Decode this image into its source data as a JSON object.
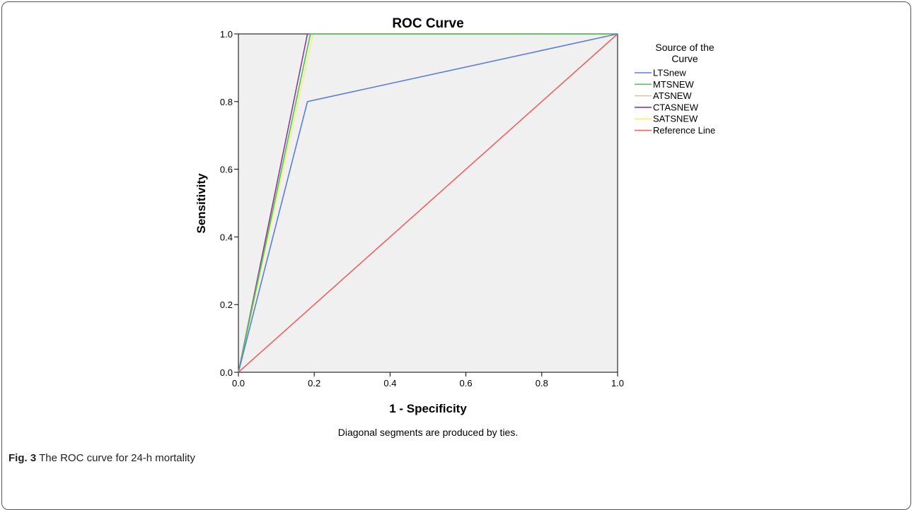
{
  "caption": {
    "label": "Fig. 3",
    "text": "The ROC curve for 24-h mortality"
  },
  "footnote": "Diagonal segments are produced by ties.",
  "chart_data": {
    "type": "line",
    "title": "ROC Curve",
    "xlabel": "1 - Specificity",
    "ylabel": "Sensitivity",
    "xlim": [
      0.0,
      1.0
    ],
    "ylim": [
      0.0,
      1.0
    ],
    "xticks": [
      "0.0",
      "0.2",
      "0.4",
      "0.6",
      "0.8",
      "1.0"
    ],
    "yticks": [
      "0.0",
      "0.2",
      "0.4",
      "0.6",
      "0.8",
      "1.0"
    ],
    "plot_background": "#f0f0f0",
    "grid": false,
    "legend": {
      "title_lines": [
        "Source of the",
        "Curve"
      ],
      "placement": "right"
    },
    "series": [
      {
        "name": "LTSnew",
        "color": "#5b7fd6",
        "x": [
          0.0,
          0.182,
          1.0
        ],
        "y": [
          0.0,
          0.8,
          1.0
        ]
      },
      {
        "name": "MTSNEW",
        "color": "#4cc45a",
        "x": [
          0.0,
          0.19,
          1.0
        ],
        "y": [
          0.0,
          1.0,
          1.0
        ]
      },
      {
        "name": "ATSNEW",
        "color": "#d8c9a0",
        "x": [
          0.0,
          0.19,
          1.0
        ],
        "y": [
          0.0,
          1.0,
          1.0
        ]
      },
      {
        "name": "CTASNEW",
        "color": "#8b3a9a",
        "x": [
          0.0,
          0.182,
          1.0
        ],
        "y": [
          0.0,
          1.0,
          1.0
        ]
      },
      {
        "name": "SATSNEW",
        "color": "#f2f27a",
        "x": [
          0.0,
          0.197,
          1.0
        ],
        "y": [
          0.0,
          1.0,
          1.0
        ]
      },
      {
        "name": "Reference Line",
        "color": "#f06060",
        "x": [
          0.0,
          1.0
        ],
        "y": [
          0.0,
          1.0
        ]
      }
    ]
  }
}
